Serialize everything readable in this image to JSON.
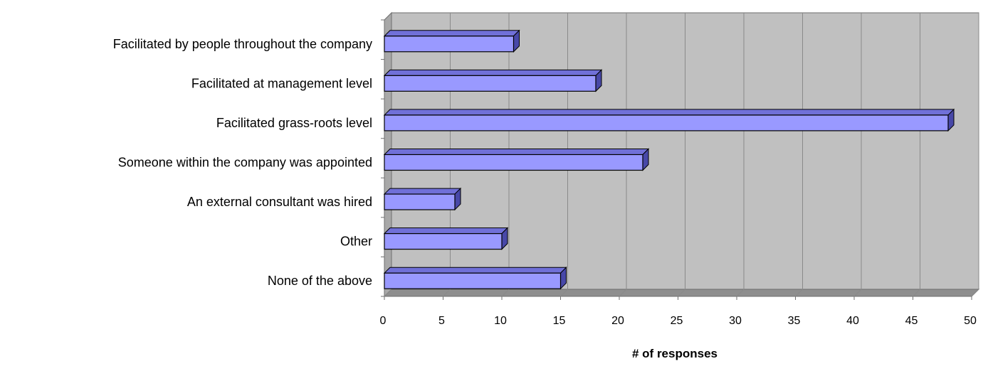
{
  "chart_data": {
    "type": "bar",
    "orientation": "horizontal",
    "three_d": true,
    "categories": [
      "Facilitated by people throughout the company",
      "Facilitated at management level",
      "Facilitated grass-roots level",
      "Someone within the company was appointed",
      "An external consultant was hired",
      "Other",
      "None of the above"
    ],
    "values": [
      11,
      18,
      48,
      22,
      6,
      10,
      15
    ],
    "xlabel": "# of responses",
    "ylabel": "",
    "title": "",
    "xlim": [
      0,
      50
    ],
    "xticks": [
      0,
      5,
      10,
      15,
      20,
      25,
      30,
      35,
      40,
      45,
      50
    ],
    "grid": true,
    "legend": "none",
    "colors": {
      "bar_front": "#9999ff",
      "bar_top": "#7070d8",
      "bar_side": "#4848a8",
      "bar_stroke": "#000000",
      "plot_back": "#c0c0c0",
      "plot_floor": "#8e8e8e",
      "plot_left_wall": "#a8a8a8",
      "gridline": "#8a8a8a"
    }
  }
}
